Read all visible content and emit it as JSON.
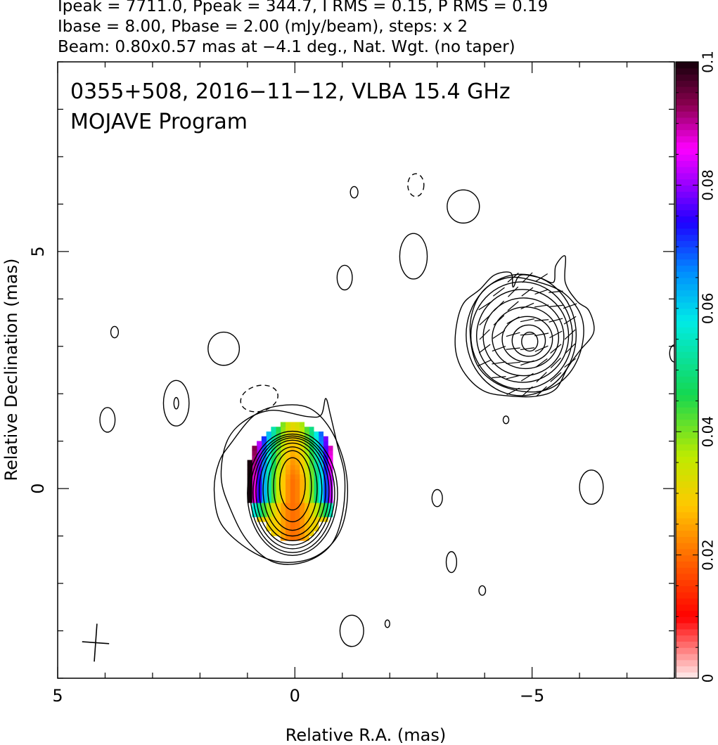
{
  "header": {
    "line1": "Ipeak = 7711.0, Ppeak = 344.7, I RMS = 0.15, P RMS = 0.19",
    "line2": "Ibase = 8.00, Pbase = 2.00 (mJy/beam), steps: x 2",
    "line3": "Beam: 0.80x0.57 mas at −4.1 deg., Nat. Wgt. (no taper)"
  },
  "chart_data": {
    "type": "heatmap",
    "title": "0355+508, 2016−11−12, VLBA 15.4 GHz",
    "subtitle": "MOJAVE Program",
    "xlabel": "Relative R.A. (mas)",
    "ylabel": "Relative Declination (mas)",
    "xlim": [
      5,
      -8
    ],
    "ylim": [
      -4,
      9
    ],
    "x_ticks": [
      {
        "value": 5,
        "label": "5"
      },
      {
        "value": 0,
        "label": "0"
      },
      {
        "value": -5,
        "label": "−5"
      }
    ],
    "y_ticks": [
      {
        "value": 0,
        "label": "0"
      },
      {
        "value": 5,
        "label": "5"
      }
    ],
    "colorbar": {
      "range": [
        0,
        0.1
      ],
      "ticks": [
        {
          "value": 0,
          "label": "0"
        },
        {
          "value": 0.02,
          "label": "0.02"
        },
        {
          "value": 0.04,
          "label": "0.04"
        },
        {
          "value": 0.06,
          "label": "0.06"
        },
        {
          "value": 0.08,
          "label": "0.08"
        },
        {
          "value": 0.1,
          "label": "0.1"
        }
      ]
    },
    "beam": {
      "major": 0.8,
      "minor": 0.57,
      "pa_deg": -4.1
    },
    "core": {
      "x": 0.05,
      "y": 0.1
    },
    "jet_component": {
      "x": -4.95,
      "y": 3.1
    },
    "core_contours": [
      {
        "x": 0.05,
        "y": 0.1,
        "rx": 0.27,
        "ry": 0.55
      },
      {
        "x": 0.05,
        "y": 0.05,
        "rx": 0.4,
        "ry": 0.75
      },
      {
        "x": 0.05,
        "y": 0.0,
        "rx": 0.52,
        "ry": 0.88
      },
      {
        "x": 0.05,
        "y": -0.02,
        "rx": 0.62,
        "ry": 0.98
      },
      {
        "x": 0.05,
        "y": -0.04,
        "rx": 0.7,
        "ry": 1.06
      },
      {
        "x": 0.05,
        "y": -0.06,
        "rx": 0.77,
        "ry": 1.13
      },
      {
        "x": 0.05,
        "y": -0.08,
        "rx": 0.83,
        "ry": 1.19
      },
      {
        "x": 0.05,
        "y": -0.1,
        "rx": 0.89,
        "ry": 1.25
      },
      {
        "x": 0.05,
        "y": -0.1,
        "rx": 0.95,
        "ry": 1.31
      }
    ],
    "core_outer_contours": [
      [
        [
          1.1,
          1.4
        ],
        [
          0.5,
          1.65
        ],
        [
          -0.25,
          1.52
        ],
        [
          -0.55,
          1.55
        ],
        [
          -0.65,
          1.9
        ],
        [
          -0.75,
          1.55
        ],
        [
          -0.9,
          0.9
        ],
        [
          -1.05,
          0.25
        ],
        [
          -1.0,
          -0.55
        ],
        [
          -0.75,
          -1.2
        ],
        [
          -0.2,
          -1.55
        ],
        [
          0.45,
          -1.55
        ],
        [
          1.0,
          -1.1
        ],
        [
          1.35,
          -0.45
        ],
        [
          1.55,
          0.2
        ],
        [
          1.45,
          0.95
        ]
      ],
      [
        [
          1.35,
          0.95
        ],
        [
          0.85,
          1.55
        ],
        [
          0.3,
          1.75
        ],
        [
          -0.3,
          1.7
        ],
        [
          -0.75,
          1.25
        ],
        [
          -1.05,
          0.5
        ],
        [
          -1.1,
          -0.3
        ],
        [
          -0.9,
          -1.0
        ],
        [
          -0.4,
          -1.45
        ],
        [
          0.3,
          -1.55
        ],
        [
          0.95,
          -1.3
        ],
        [
          1.55,
          -0.75
        ],
        [
          1.7,
          -0.05
        ],
        [
          1.6,
          0.55
        ]
      ]
    ],
    "component_contours": [
      {
        "x": -4.95,
        "y": 3.1,
        "rx": 0.17,
        "ry": 0.2
      },
      {
        "x": -4.93,
        "y": 3.12,
        "rx": 0.35,
        "ry": 0.33
      },
      {
        "x": -4.9,
        "y": 3.15,
        "rx": 0.53,
        "ry": 0.48
      },
      {
        "x": -4.86,
        "y": 3.18,
        "rx": 0.7,
        "ry": 0.65
      },
      {
        "x": -4.82,
        "y": 3.2,
        "rx": 0.85,
        "ry": 0.82
      },
      {
        "x": -4.8,
        "y": 3.22,
        "rx": 0.97,
        "ry": 0.98
      },
      {
        "x": -4.78,
        "y": 3.23,
        "rx": 1.07,
        "ry": 1.13
      },
      {
        "x": -4.77,
        "y": 3.24,
        "rx": 1.16,
        "ry": 1.28
      }
    ],
    "component_outer_contours": [
      [
        [
          -3.9,
          4.2
        ],
        [
          -4.2,
          4.5
        ],
        [
          -4.55,
          4.55
        ],
        [
          -4.6,
          4.25
        ],
        [
          -4.75,
          4.5
        ],
        [
          -5.15,
          4.45
        ],
        [
          -5.45,
          4.35
        ],
        [
          -5.5,
          4.7
        ],
        [
          -5.7,
          4.9
        ],
        [
          -5.7,
          4.35
        ],
        [
          -5.95,
          3.95
        ],
        [
          -6.2,
          3.75
        ],
        [
          -6.3,
          3.3
        ],
        [
          -6.0,
          2.9
        ],
        [
          -5.75,
          2.55
        ],
        [
          -5.5,
          2.1
        ],
        [
          -5.1,
          1.95
        ],
        [
          -4.55,
          1.95
        ],
        [
          -4.0,
          2.05
        ],
        [
          -3.6,
          2.4
        ],
        [
          -3.4,
          2.85
        ],
        [
          -3.4,
          3.4
        ],
        [
          -3.55,
          3.9
        ]
      ],
      [
        [
          -3.7,
          3.5
        ],
        [
          -3.95,
          4.15
        ],
        [
          -4.5,
          4.45
        ],
        [
          -5.15,
          4.35
        ],
        [
          -5.7,
          4.1
        ],
        [
          -6.05,
          3.6
        ],
        [
          -6.05,
          3.0
        ],
        [
          -5.8,
          2.45
        ],
        [
          -5.35,
          2.1
        ],
        [
          -4.8,
          2.05
        ],
        [
          -4.2,
          2.25
        ],
        [
          -3.8,
          2.7
        ]
      ]
    ],
    "isolated_contours": [
      {
        "x": -3.55,
        "y": 5.95,
        "rx": 0.34,
        "ry": 0.35
      },
      {
        "x": -2.5,
        "y": 4.9,
        "rx": 0.29,
        "ry": 0.48
      },
      {
        "x": -1.05,
        "y": 4.45,
        "rx": 0.16,
        "ry": 0.26
      },
      {
        "x": -1.25,
        "y": 6.25,
        "rx": 0.08,
        "ry": 0.12
      },
      {
        "x": 1.5,
        "y": 2.95,
        "rx": 0.33,
        "ry": 0.35
      },
      {
        "x": 2.5,
        "y": 1.8,
        "rx": 0.27,
        "ry": 0.48
      },
      {
        "x": 2.5,
        "y": 1.8,
        "rx": 0.05,
        "ry": 0.12
      },
      {
        "x": 3.95,
        "y": 1.45,
        "rx": 0.16,
        "ry": 0.26
      },
      {
        "x": 3.8,
        "y": 3.3,
        "rx": 0.08,
        "ry": 0.12
      },
      {
        "x": -6.25,
        "y": 0.03,
        "rx": 0.25,
        "ry": 0.36
      },
      {
        "x": -3.0,
        "y": -0.2,
        "rx": 0.11,
        "ry": 0.18
      },
      {
        "x": -3.3,
        "y": -1.55,
        "rx": 0.11,
        "ry": 0.22
      },
      {
        "x": -3.95,
        "y": -2.15,
        "rx": 0.07,
        "ry": 0.1
      },
      {
        "x": -1.2,
        "y": -3.0,
        "rx": 0.25,
        "ry": 0.33
      },
      {
        "x": -1.95,
        "y": -2.85,
        "rx": 0.05,
        "ry": 0.08
      },
      {
        "x": -4.45,
        "y": 1.45,
        "rx": 0.06,
        "ry": 0.08
      },
      {
        "x": -8.0,
        "y": 2.85,
        "rx": 0.1,
        "ry": 0.18
      }
    ],
    "negative_contours": [
      {
        "x": 0.75,
        "y": 1.9,
        "rx": 0.4,
        "ry": 0.27,
        "angle": -15
      },
      {
        "x": -2.55,
        "y": 6.4,
        "rx": 0.17,
        "ry": 0.24,
        "angle": 0
      }
    ],
    "fractional_polarization_map": {
      "grid_step_mas": 0.1,
      "x_range": [
        -0.75,
        1.15
      ],
      "y_range": [
        -1.05,
        1.45
      ],
      "peak_fraction_at_edges": 0.1,
      "min_fraction_along_axis": 0.02
    },
    "evpa_ticks": {
      "region_center": {
        "x": -4.9,
        "y": 3.25
      },
      "spacing_mas": 0.3,
      "length_mas": 0.3
    }
  }
}
